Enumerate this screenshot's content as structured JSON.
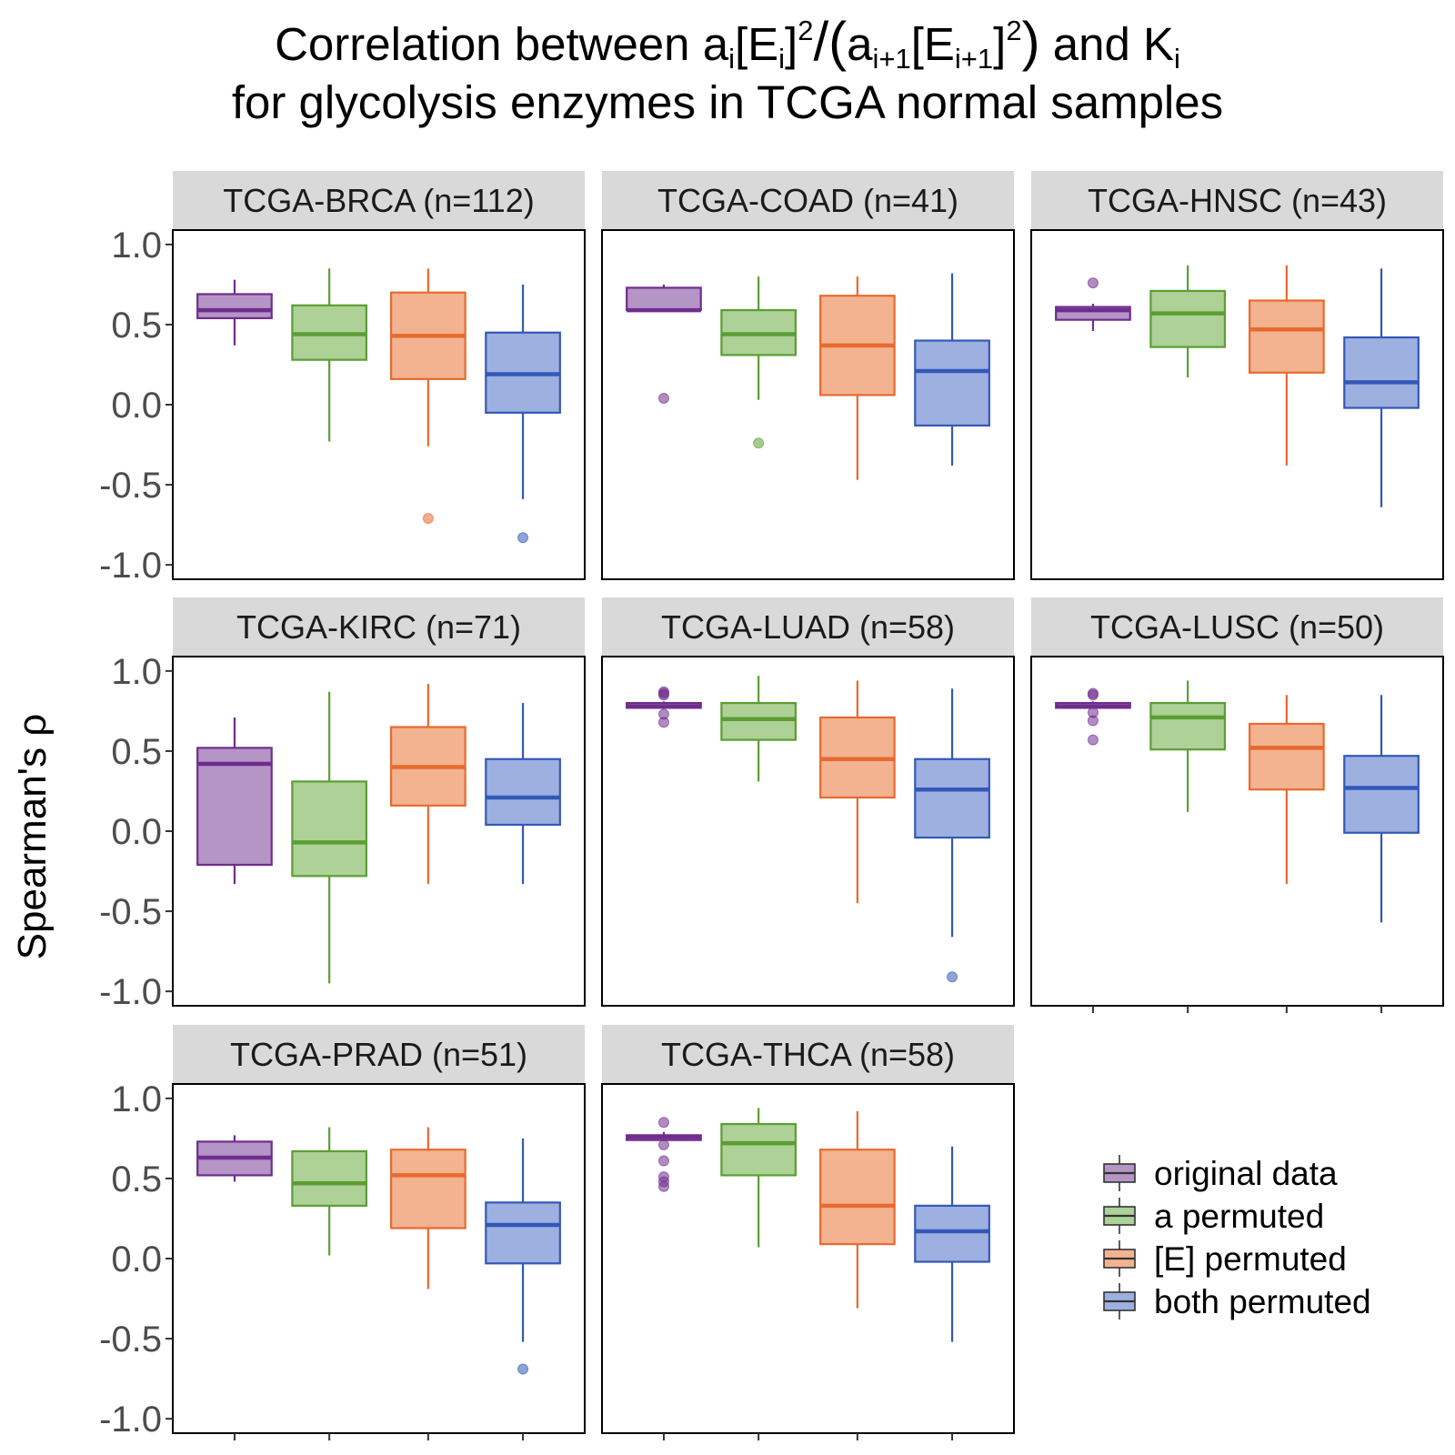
{
  "title": {
    "l1_a": "Correlation between a",
    "l1_sub1": "i",
    "l1_b": "[E",
    "l1_sub2": "i",
    "l1_c": "]",
    "l1_sup1": "2",
    "l1_slash": "/",
    "l1_open": "(",
    "l1_d": "a",
    "l1_sub3": "i+1",
    "l1_e": "[E",
    "l1_sub4": "i+1",
    "l1_f": "]",
    "l1_sup2": "2",
    "l1_close": ")",
    "l1_g": " and K",
    "l1_sub5": "i",
    "line2": "for glycolysis enzymes in TCGA normal samples"
  },
  "chart_data": {
    "type": "boxplot",
    "ylabel": "Spearman's  ρ",
    "ylim": [
      -1.0,
      1.0
    ],
    "yticks": [
      "-1.0",
      "-0.5",
      "0.0",
      "0.5",
      "1.0"
    ],
    "grid": false,
    "legend_position": "right-bottom",
    "groups": [
      "original data",
      "a permuted",
      "[E] permuted",
      "both permuted"
    ],
    "colors": {
      "fill": [
        "#b595c5",
        "#add197",
        "#f3b391",
        "#9db0e0"
      ],
      "stroke": [
        "#6f2d8e",
        "#5b9e33",
        "#e86a2e",
        "#3358b7"
      ]
    },
    "panels": [
      {
        "label": "TCGA-BRCA (n=112)",
        "boxes": [
          {
            "min": 0.37,
            "q1": 0.54,
            "median": 0.59,
            "q3": 0.69,
            "max": 0.78,
            "outliers": []
          },
          {
            "min": -0.23,
            "q1": 0.28,
            "median": 0.44,
            "q3": 0.62,
            "max": 0.85,
            "outliers": []
          },
          {
            "min": -0.26,
            "q1": 0.16,
            "median": 0.43,
            "q3": 0.7,
            "max": 0.85,
            "outliers": [
              -0.71
            ]
          },
          {
            "min": -0.59,
            "q1": -0.05,
            "median": 0.19,
            "q3": 0.45,
            "max": 0.75,
            "outliers": [
              -0.83
            ]
          }
        ]
      },
      {
        "label": "TCGA-COAD (n=41)",
        "boxes": [
          {
            "min": 0.59,
            "q1": 0.59,
            "median": 0.59,
            "q3": 0.73,
            "max": 0.75,
            "outliers": [
              0.04
            ]
          },
          {
            "min": 0.03,
            "q1": 0.31,
            "median": 0.44,
            "q3": 0.59,
            "max": 0.8,
            "outliers": [
              -0.24
            ]
          },
          {
            "min": -0.47,
            "q1": 0.06,
            "median": 0.37,
            "q3": 0.68,
            "max": 0.8,
            "outliers": []
          },
          {
            "min": -0.38,
            "q1": -0.13,
            "median": 0.21,
            "q3": 0.4,
            "max": 0.82,
            "outliers": []
          }
        ]
      },
      {
        "label": "TCGA-HNSC (n=43)",
        "boxes": [
          {
            "min": 0.46,
            "q1": 0.53,
            "median": 0.59,
            "q3": 0.61,
            "max": 0.63,
            "outliers": [
              0.76
            ]
          },
          {
            "min": 0.17,
            "q1": 0.36,
            "median": 0.57,
            "q3": 0.71,
            "max": 0.87,
            "outliers": []
          },
          {
            "min": -0.38,
            "q1": 0.2,
            "median": 0.47,
            "q3": 0.65,
            "max": 0.87,
            "outliers": []
          },
          {
            "min": -0.64,
            "q1": -0.02,
            "median": 0.14,
            "q3": 0.42,
            "max": 0.85,
            "outliers": []
          }
        ]
      },
      {
        "label": "TCGA-KIRC (n=71)",
        "boxes": [
          {
            "min": -0.33,
            "q1": -0.21,
            "median": 0.42,
            "q3": 0.52,
            "max": 0.71,
            "outliers": []
          },
          {
            "min": -0.95,
            "q1": -0.28,
            "median": -0.07,
            "q3": 0.31,
            "max": 0.87,
            "outliers": []
          },
          {
            "min": -0.33,
            "q1": 0.16,
            "median": 0.4,
            "q3": 0.65,
            "max": 0.92,
            "outliers": []
          },
          {
            "min": -0.33,
            "q1": 0.04,
            "median": 0.21,
            "q3": 0.45,
            "max": 0.8,
            "outliers": []
          }
        ]
      },
      {
        "label": "TCGA-LUAD (n=58)",
        "boxes": [
          {
            "min": 0.77,
            "q1": 0.77,
            "median": 0.78,
            "q3": 0.8,
            "max": 0.81,
            "outliers": [
              0.87,
              0.86,
              0.85,
              0.73,
              0.68
            ]
          },
          {
            "min": 0.31,
            "q1": 0.57,
            "median": 0.7,
            "q3": 0.8,
            "max": 0.97,
            "outliers": []
          },
          {
            "min": -0.45,
            "q1": 0.21,
            "median": 0.45,
            "q3": 0.71,
            "max": 0.94,
            "outliers": []
          },
          {
            "min": -0.66,
            "q1": -0.04,
            "median": 0.26,
            "q3": 0.45,
            "max": 0.89,
            "outliers": [
              -0.91
            ]
          }
        ]
      },
      {
        "label": "TCGA-LUSC (n=50)",
        "boxes": [
          {
            "min": 0.77,
            "q1": 0.77,
            "median": 0.78,
            "q3": 0.8,
            "max": 0.81,
            "outliers": [
              0.86,
              0.85,
              0.74,
              0.69,
              0.57
            ]
          },
          {
            "min": 0.12,
            "q1": 0.51,
            "median": 0.71,
            "q3": 0.8,
            "max": 0.94,
            "outliers": []
          },
          {
            "min": -0.33,
            "q1": 0.26,
            "median": 0.52,
            "q3": 0.67,
            "max": 0.85,
            "outliers": []
          },
          {
            "min": -0.57,
            "q1": -0.01,
            "median": 0.27,
            "q3": 0.47,
            "max": 0.85,
            "outliers": []
          }
        ]
      },
      {
        "label": "TCGA-PRAD (n=51)",
        "boxes": [
          {
            "min": 0.48,
            "q1": 0.52,
            "median": 0.63,
            "q3": 0.73,
            "max": 0.77,
            "outliers": []
          },
          {
            "min": 0.02,
            "q1": 0.33,
            "median": 0.47,
            "q3": 0.67,
            "max": 0.82,
            "outliers": []
          },
          {
            "min": -0.19,
            "q1": 0.19,
            "median": 0.52,
            "q3": 0.68,
            "max": 0.82,
            "outliers": []
          },
          {
            "min": -0.52,
            "q1": -0.03,
            "median": 0.21,
            "q3": 0.35,
            "max": 0.75,
            "outliers": [
              -0.69
            ]
          }
        ]
      },
      {
        "label": "TCGA-THCA (n=58)",
        "boxes": [
          {
            "min": 0.74,
            "q1": 0.74,
            "median": 0.76,
            "q3": 0.77,
            "max": 0.79,
            "outliers": [
              0.85,
              0.71,
              0.61,
              0.51,
              0.48,
              0.45
            ]
          },
          {
            "min": 0.07,
            "q1": 0.52,
            "median": 0.72,
            "q3": 0.84,
            "max": 0.94,
            "outliers": []
          },
          {
            "min": -0.31,
            "q1": 0.09,
            "median": 0.33,
            "q3": 0.68,
            "max": 0.92,
            "outliers": []
          },
          {
            "min": -0.52,
            "q1": -0.02,
            "median": 0.17,
            "q3": 0.33,
            "max": 0.7,
            "outliers": []
          }
        ]
      }
    ]
  }
}
